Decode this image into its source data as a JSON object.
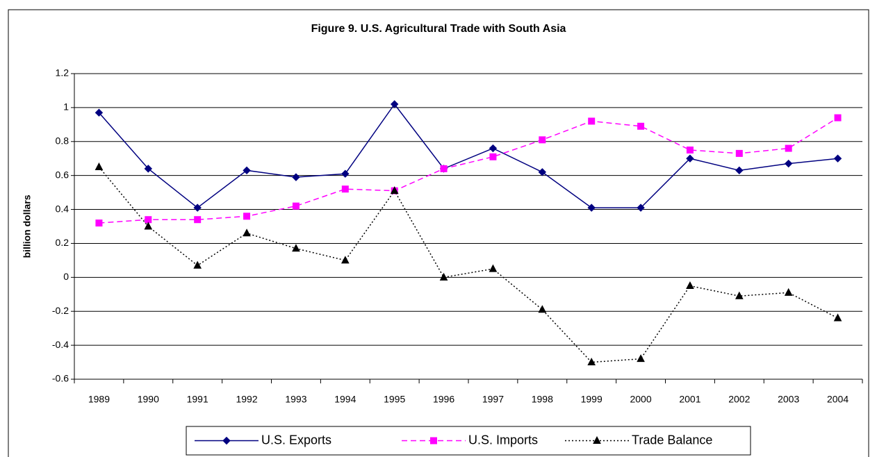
{
  "chart_data": {
    "type": "line",
    "title": "Figure 9. U.S. Agricultural Trade with South Asia",
    "y_label": "billion dollars",
    "categories": [
      "1989",
      "1990",
      "1991",
      "1992",
      "1993",
      "1994",
      "1995",
      "1996",
      "1997",
      "1998",
      "1999",
      "2000",
      "2001",
      "2002",
      "2003",
      "2004"
    ],
    "series": [
      {
        "name": "U.S. Exports",
        "color": "#000080",
        "marker": "diamond",
        "dash": "solid",
        "values": [
          0.97,
          0.64,
          0.41,
          0.63,
          0.59,
          0.61,
          1.02,
          0.64,
          0.76,
          0.62,
          0.41,
          0.41,
          0.7,
          0.63,
          0.67,
          0.7
        ]
      },
      {
        "name": "U.S. Imports",
        "color": "#ff00ff",
        "marker": "square",
        "dash": "dashed",
        "values": [
          0.32,
          0.34,
          0.34,
          0.36,
          0.42,
          0.52,
          0.51,
          0.64,
          0.71,
          0.81,
          0.92,
          0.89,
          0.75,
          0.73,
          0.76,
          0.94
        ]
      },
      {
        "name": "Trade Balance",
        "color": "#000000",
        "marker": "triangle",
        "dash": "dotted",
        "values": [
          0.65,
          0.3,
          0.07,
          0.26,
          0.17,
          0.1,
          0.51,
          0.0,
          0.05,
          -0.19,
          -0.5,
          -0.48,
          -0.05,
          -0.11,
          -0.09,
          -0.24
        ]
      }
    ],
    "ylim": [
      -0.6,
      1.2
    ],
    "yticks": [
      -0.6,
      -0.4,
      -0.2,
      0,
      0.2,
      0.4,
      0.6,
      0.8,
      1,
      1.2
    ],
    "grid": true,
    "legend": "bottom"
  }
}
